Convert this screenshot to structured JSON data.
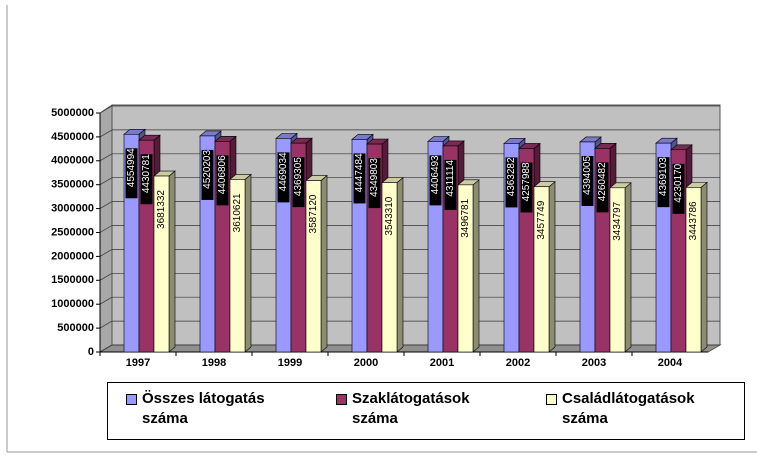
{
  "chart_data": {
    "type": "bar3d",
    "categories": [
      "1997",
      "1998",
      "1999",
      "2000",
      "2001",
      "2002",
      "2003",
      "2004"
    ],
    "series": [
      {
        "name": "Összes látogatás száma",
        "color": "#9999ff",
        "values": [
          4554994,
          4520203,
          4469034,
          4447484,
          4406493,
          4363282,
          4394005,
          4369103
        ]
      },
      {
        "name": "Szaklátogatások száma",
        "color": "#993366",
        "values": [
          4430781,
          4406806,
          4369305,
          4349803,
          4311114,
          4257988,
          4260482,
          4230170
        ]
      },
      {
        "name": "Családlátogatások száma",
        "color": "#ffffcc",
        "values": [
          3681332,
          3610621,
          3587120,
          3543310,
          3496781,
          3457749,
          3434797,
          3443786
        ]
      }
    ],
    "ylim": [
      0,
      5000000
    ],
    "yticks": [
      0,
      500000,
      1000000,
      1500000,
      2000000,
      2500000,
      3000000,
      3500000,
      4000000,
      4500000,
      5000000
    ],
    "grid": true,
    "legend": "bottom"
  }
}
